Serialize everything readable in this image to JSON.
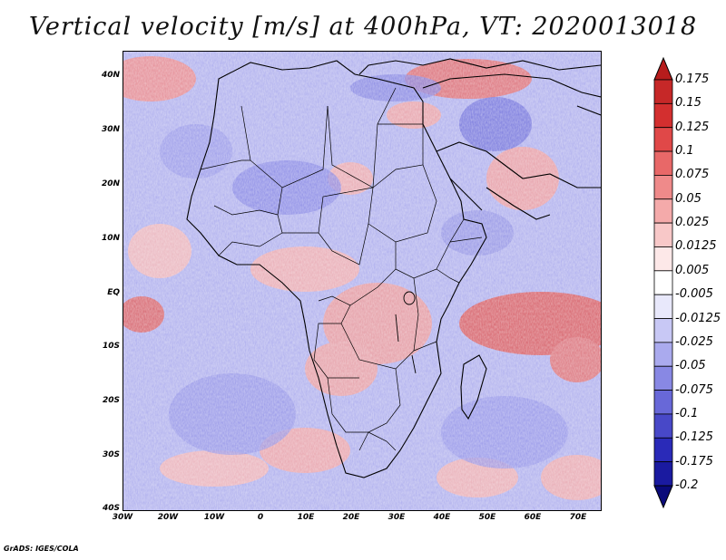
{
  "title": "Vertical velocity [m/s] at 400hPa, VT: 2020013018",
  "credit": "GrADS: IGES/COLA",
  "lat_labels": [
    "40N",
    "30N",
    "20N",
    "10N",
    "EQ",
    "10S",
    "20S",
    "30S",
    "40S"
  ],
  "lon_labels": [
    "30W",
    "20W",
    "10W",
    "0",
    "10E",
    "20E",
    "30E",
    "40E",
    "50E",
    "60E",
    "70E"
  ],
  "colorbar": {
    "labels": [
      "0.175",
      "0.15",
      "0.125",
      "0.1",
      "0.075",
      "0.05",
      "0.025",
      "0.0125",
      "0.005",
      "-0.005",
      "-0.0125",
      "-0.025",
      "-0.05",
      "-0.075",
      "-0.1",
      "-0.125",
      "-0.175",
      "-0.2"
    ],
    "colors": [
      "#b71c1c",
      "#c62828",
      "#d32f2f",
      "#e04848",
      "#e86868",
      "#ef8a8a",
      "#f4aaaa",
      "#f8c8c8",
      "#fde8e8",
      "#ffffff",
      "#e8e8fb",
      "#c8c8f5",
      "#aaaaee",
      "#8888e4",
      "#6868d8",
      "#4848c8",
      "#2a2ab8",
      "#1a1aa0",
      "#0a0a7a"
    ]
  }
}
